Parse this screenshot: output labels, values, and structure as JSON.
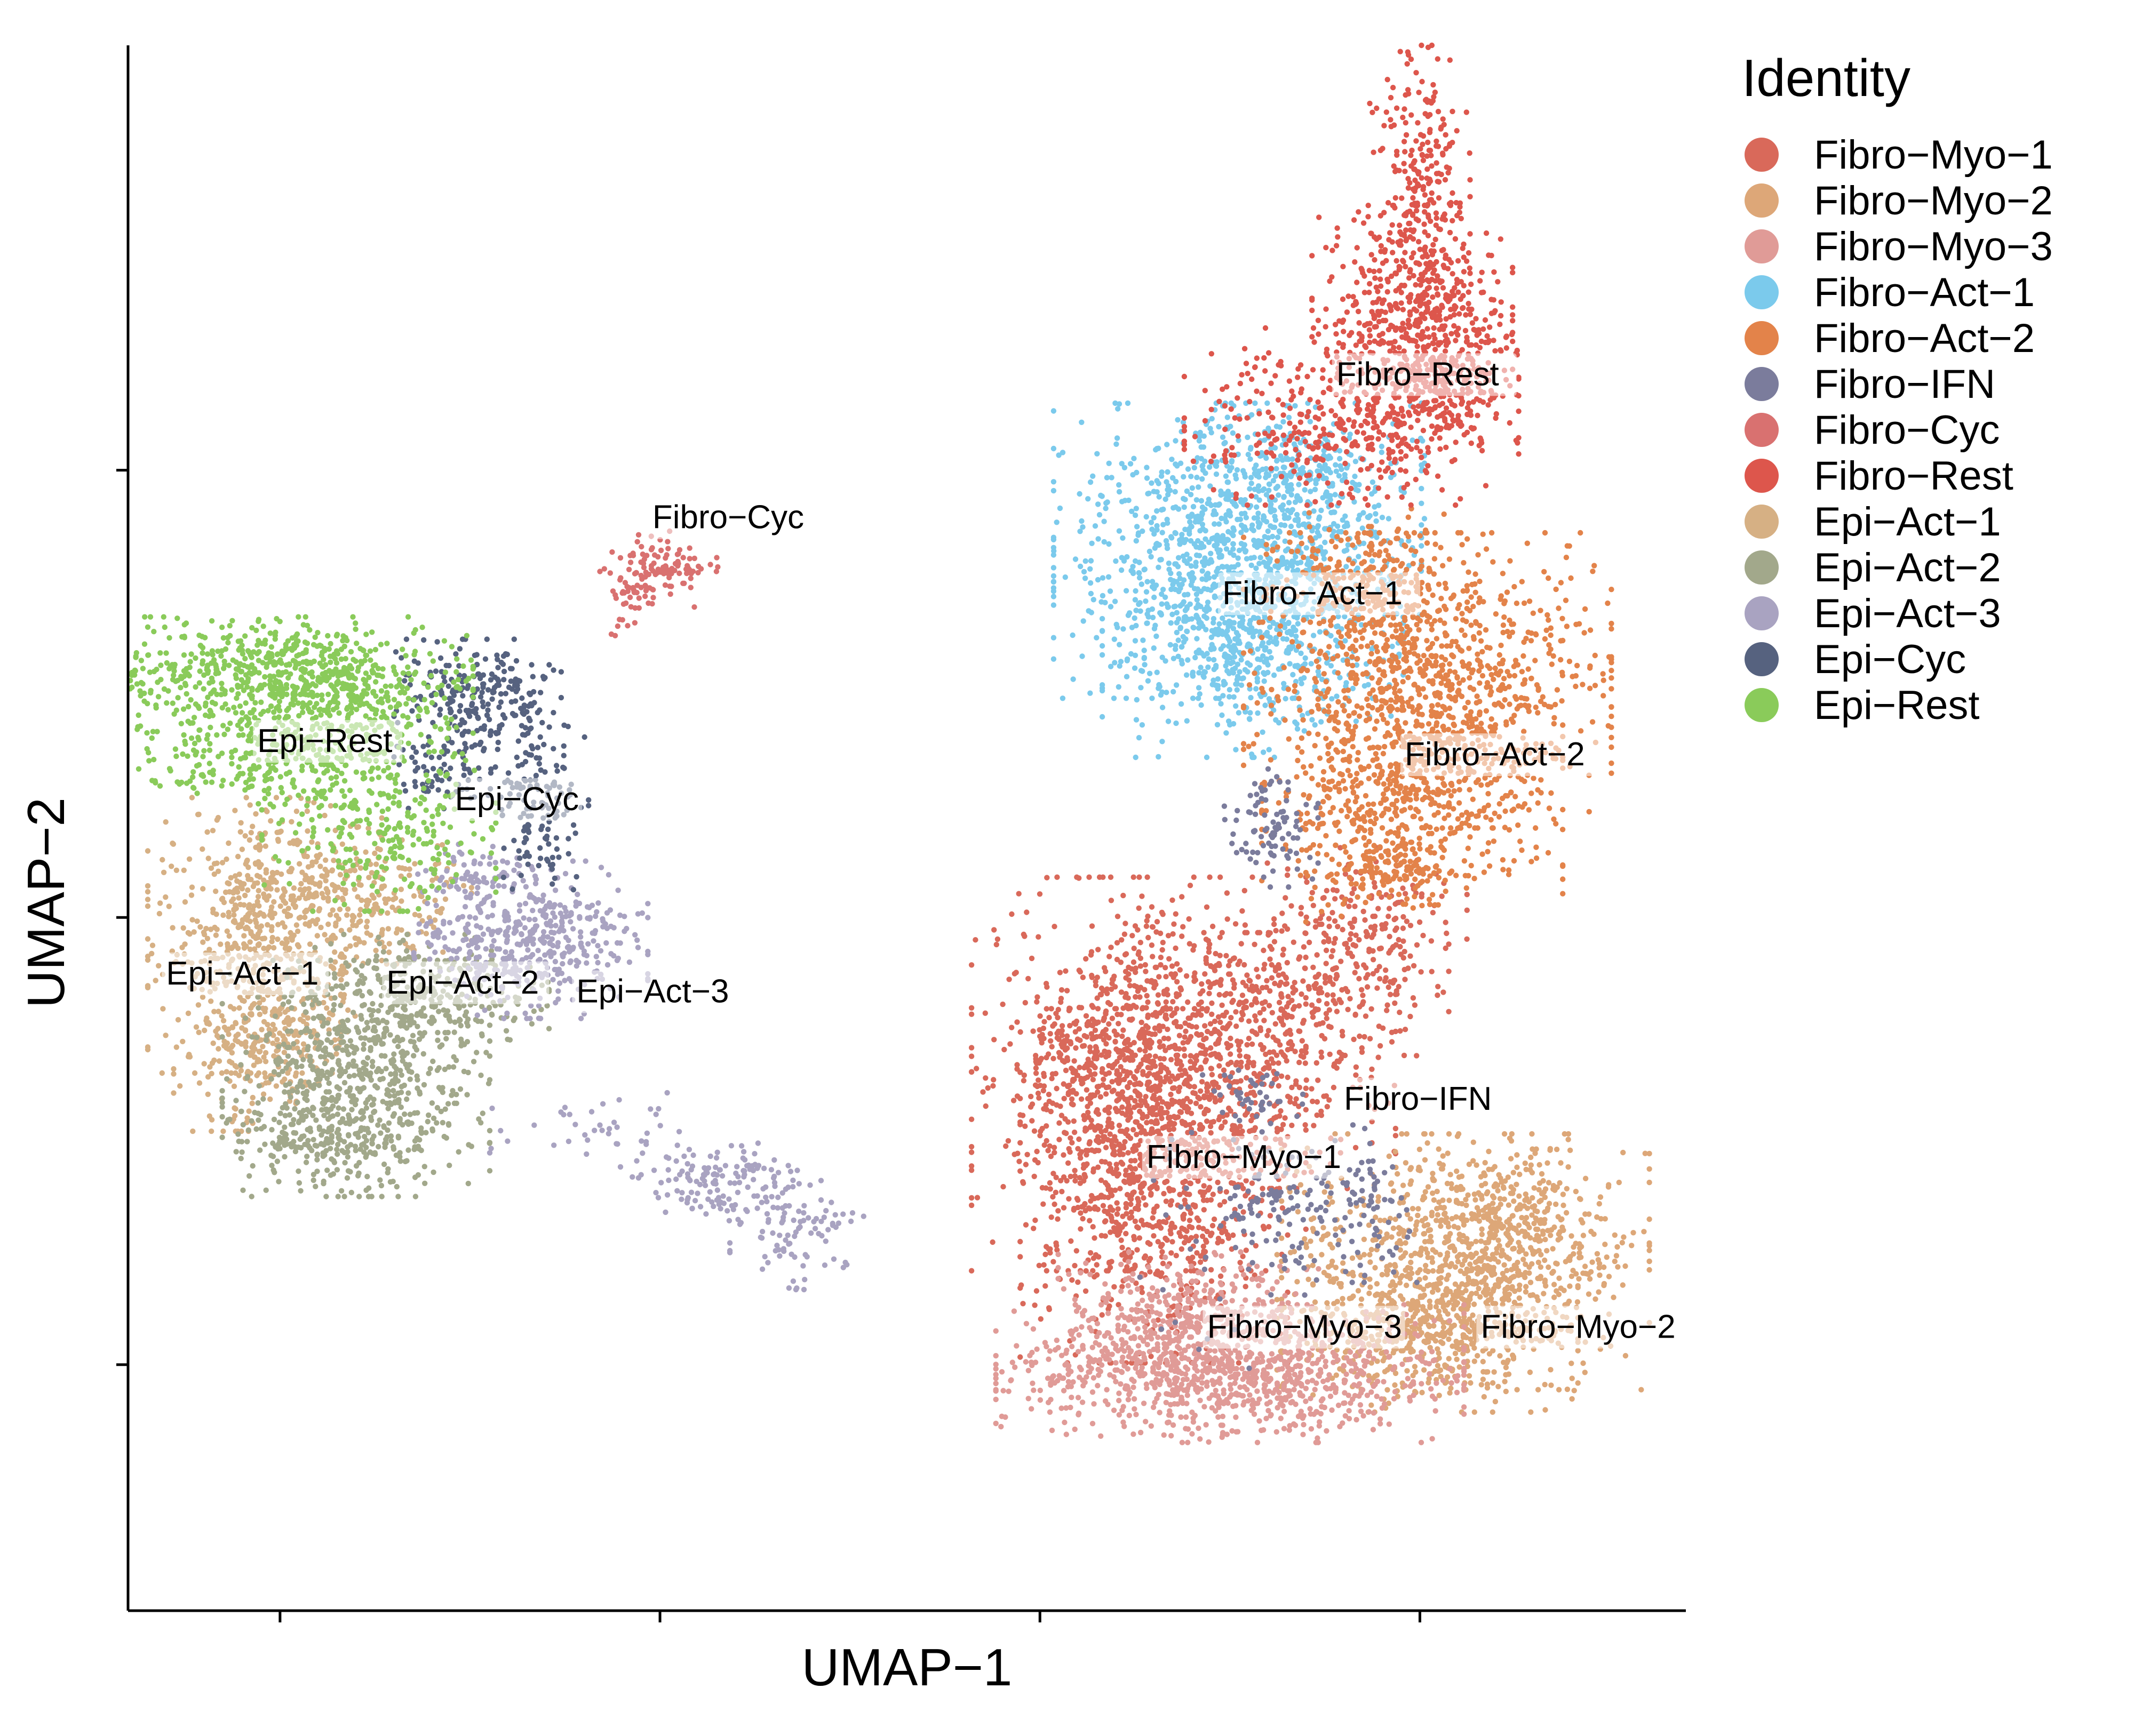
{
  "chart_data": {
    "type": "scatter",
    "title": "",
    "xlabel": "UMAP−1",
    "ylabel": "UMAP−2",
    "xlim": [
      -4.5,
      16
    ],
    "ylim": [
      -5.5,
      29.5
    ],
    "xticks": [
      -2.5,
      2.5,
      7.5,
      12.5
    ],
    "yticks": [
      0,
      10,
      20
    ],
    "tick_labels_shown": false,
    "grid": false,
    "legend": {
      "title": "Identity",
      "position": "right"
    },
    "series": [
      {
        "name": "Fibro−Myo−1",
        "color": "#D9695A",
        "label": "Fibro−Myo−1",
        "label_at": [
          8.9,
          4.4
        ],
        "blobs": [
          [
            8.8,
            6.5,
            1.0,
            2.0,
            900
          ],
          [
            9.0,
            4.0,
            0.8,
            1.8,
            750
          ],
          [
            10.2,
            6.8,
            0.9,
            1.3,
            350
          ],
          [
            10.9,
            8.4,
            0.9,
            1.0,
            260
          ],
          [
            11.8,
            9.8,
            0.6,
            0.8,
            160
          ],
          [
            8.3,
            6.9,
            0.5,
            0.8,
            120
          ]
        ]
      },
      {
        "name": "Fibro−Myo−2",
        "color": "#DDA778",
        "label": "Fibro−Myo−2",
        "label_at": [
          13.3,
          0.6
        ],
        "blobs": [
          [
            13.1,
            2.3,
            1.1,
            1.3,
            900
          ],
          [
            12.6,
            0.7,
            0.9,
            0.8,
            450
          ],
          [
            13.6,
            3.5,
            0.6,
            0.6,
            160
          ]
        ]
      },
      {
        "name": "Fibro−Myo−3",
        "color": "#E09B97",
        "label": "Fibro−Myo−3",
        "label_at": [
          9.7,
          0.6
        ],
        "blobs": [
          [
            10.0,
            -0.2,
            1.4,
            0.7,
            1000
          ],
          [
            9.5,
            1.2,
            0.8,
            0.6,
            300
          ]
        ]
      },
      {
        "name": "Fibro−Act−1",
        "color": "#7BCAEC",
        "label": "Fibro−Act−1",
        "label_at": [
          9.9,
          17.0
        ],
        "blobs": [
          [
            10.1,
            18.2,
            1.1,
            1.5,
            1000
          ],
          [
            10.3,
            16.0,
            0.9,
            1.1,
            500
          ],
          [
            10.8,
            19.9,
            0.8,
            0.7,
            250
          ]
        ]
      },
      {
        "name": "Fibro−Act−2",
        "color": "#E3834A",
        "label": "Fibro−Act−2",
        "label_at": [
          12.3,
          13.4
        ],
        "blobs": [
          [
            12.6,
            15.3,
            1.1,
            1.5,
            1000
          ],
          [
            12.4,
            12.7,
            0.9,
            1.1,
            500
          ],
          [
            11.8,
            17.6,
            0.6,
            0.7,
            220
          ],
          [
            12.1,
            11.0,
            0.5,
            0.5,
            150
          ]
        ]
      },
      {
        "name": "Fibro−IFN",
        "color": "#7B7C9C",
        "label": "Fibro−IFN",
        "label_at": [
          11.5,
          5.7
        ],
        "blobs": [
          [
            10.5,
            12.0,
            0.3,
            0.6,
            90
          ],
          [
            10.6,
            3.6,
            0.4,
            0.6,
            90
          ],
          [
            11.8,
            3.6,
            0.3,
            0.8,
            80
          ],
          [
            10.3,
            6.0,
            0.3,
            0.4,
            40
          ],
          [
            9.8,
            3.0,
            0.6,
            1.4,
            40
          ]
        ]
      },
      {
        "name": "Fibro−Cyc",
        "color": "#D97170",
        "label": "Fibro−Cyc",
        "label_at": [
          2.4,
          18.7
        ],
        "blobs": [
          [
            2.3,
            17.8,
            0.3,
            0.4,
            80
          ],
          [
            2.8,
            17.8,
            0.25,
            0.15,
            45
          ],
          [
            2.1,
            16.9,
            0.12,
            0.35,
            20
          ]
        ]
      },
      {
        "name": "Fibro−Rest",
        "color": "#DD564C",
        "label": "Fibro−Rest",
        "label_at": [
          11.4,
          21.9
        ],
        "blobs": [
          [
            12.5,
            26.2,
            0.3,
            1.5,
            260
          ],
          [
            12.4,
            23.5,
            0.6,
            1.1,
            450
          ],
          [
            11.6,
            21.2,
            1.0,
            0.9,
            450
          ],
          [
            12.9,
            22.0,
            0.4,
            0.8,
            180
          ]
        ]
      },
      {
        "name": "Epi−Act−1",
        "color": "#D6B084",
        "label": "Epi−Act−1",
        "label_at": [
          -4.0,
          8.5
        ],
        "blobs": [
          [
            -2.7,
            9.6,
            0.7,
            1.4,
            650
          ],
          [
            -2.8,
            7.2,
            0.5,
            0.9,
            250
          ],
          [
            -1.3,
            10.5,
            0.6,
            0.7,
            200
          ]
        ]
      },
      {
        "name": "Epi−Act−2",
        "color": "#A2A88B",
        "label": "Epi−Act−2",
        "label_at": [
          -1.1,
          8.3
        ],
        "blobs": [
          [
            -1.5,
            6.4,
            0.8,
            1.2,
            650
          ],
          [
            -0.5,
            8.3,
            0.7,
            0.6,
            300
          ],
          [
            -1.9,
            5.0,
            0.6,
            0.5,
            150
          ]
        ]
      },
      {
        "name": "Epi−Act−3",
        "color": "#A9A3C1",
        "label": "Epi−Act−3",
        "label_at": [
          1.4,
          8.1
        ],
        "blobs": [
          [
            0.8,
            9.5,
            0.7,
            0.8,
            450
          ],
          [
            3.3,
            4.1,
            0.6,
            0.4,
            140
          ],
          [
            4.3,
            3.0,
            0.4,
            0.6,
            90
          ],
          [
            1.8,
            5.2,
            0.7,
            0.4,
            40
          ],
          [
            0.1,
            11.0,
            0.4,
            0.3,
            60
          ]
        ]
      },
      {
        "name": "Epi−Cyc",
        "color": "#56627F",
        "label": "Epi−Cyc",
        "label_at": [
          -0.2,
          12.4
        ],
        "blobs": [
          [
            0.1,
            14.9,
            0.5,
            0.6,
            240
          ],
          [
            0.9,
            12.6,
            0.3,
            0.9,
            160
          ],
          [
            -0.4,
            13.2,
            0.3,
            0.4,
            60
          ]
        ]
      },
      {
        "name": "Epi−Rest",
        "color": "#8ACB5A",
        "label": "Epi−Rest",
        "label_at": [
          -2.8,
          13.7
        ],
        "blobs": [
          [
            -2.6,
            15.4,
            1.2,
            0.6,
            700
          ],
          [
            -2.5,
            13.6,
            1.0,
            0.5,
            300
          ],
          [
            -1.2,
            11.9,
            0.7,
            0.8,
            250
          ],
          [
            -1.5,
            14.8,
            0.6,
            0.6,
            150
          ]
        ]
      }
    ]
  }
}
